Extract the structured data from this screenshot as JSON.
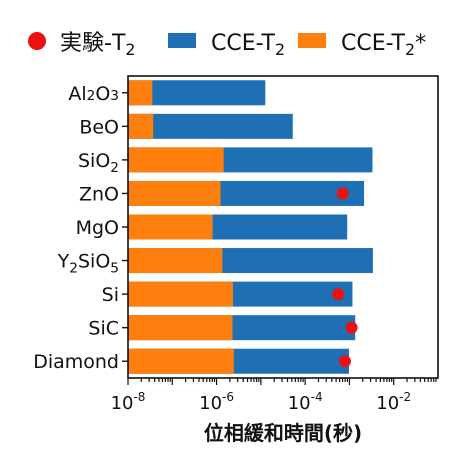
{
  "chart_data": {
    "type": "bar",
    "orientation": "horizontal",
    "x_scale": "log",
    "xlim": [
      1e-08,
      0.1
    ],
    "xlabel": "位相緩和時間(秒)",
    "x_ticks": [
      {
        "value": 1e-08,
        "base": "10",
        "exp": "-8"
      },
      {
        "value": 1e-06,
        "base": "10",
        "exp": "-6"
      },
      {
        "value": 0.0001,
        "base": "10",
        "exp": "-4"
      },
      {
        "value": 0.01,
        "base": "10",
        "exp": "-2"
      }
    ],
    "categories": [
      {
        "parts": [
          [
            "Al",
            ""
          ],
          [
            "2",
            "small"
          ],
          [
            "O",
            ""
          ],
          [
            "3",
            "small"
          ]
        ]
      },
      {
        "parts": [
          [
            "BeO",
            ""
          ]
        ]
      },
      {
        "parts": [
          [
            "SiO",
            ""
          ],
          [
            "2",
            "sub"
          ]
        ]
      },
      {
        "parts": [
          [
            "ZnO",
            ""
          ]
        ]
      },
      {
        "parts": [
          [
            "MgO",
            ""
          ]
        ]
      },
      {
        "parts": [
          [
            "Y",
            ""
          ],
          [
            "2",
            "sub"
          ],
          [
            "SiO",
            ""
          ],
          [
            "5",
            "sub"
          ]
        ]
      },
      {
        "parts": [
          [
            "Si",
            ""
          ]
        ]
      },
      {
        "parts": [
          [
            "SiC",
            ""
          ]
        ]
      },
      {
        "parts": [
          [
            "Diamond",
            ""
          ]
        ]
      }
    ],
    "series": [
      {
        "key": "cce_t2",
        "color": "#1f6fb4",
        "values": [
          1.26e-05,
          5.25e-05,
          0.00331,
          0.00214,
          0.000891,
          0.00339,
          0.00117,
          0.00135,
          0.000977
        ]
      },
      {
        "key": "cce_t2_star",
        "color": "#ff7f0e",
        "values": [
          3.55e-08,
          3.72e-08,
          1.45e-06,
          1.23e-06,
          8.13e-07,
          1.35e-06,
          2.34e-06,
          2.29e-06,
          2.45e-06
        ]
      },
      {
        "key": "exp_t2",
        "color": "#ee1111",
        "type": "scatter",
        "values": [
          null,
          null,
          null,
          0.000708,
          null,
          null,
          0.000562,
          0.00112,
          0.000794
        ]
      }
    ],
    "legend": {
      "position": "top",
      "entries": [
        {
          "series": "exp_t2",
          "marker": "circle",
          "parts": [
            [
              "実験-T",
              ""
            ],
            [
              "2",
              "sub"
            ]
          ]
        },
        {
          "series": "cce_t2",
          "marker": "rect",
          "parts": [
            [
              "CCE-T",
              ""
            ],
            [
              "2",
              "sub"
            ]
          ]
        },
        {
          "series": "cce_t2_star",
          "marker": "rect",
          "parts": [
            [
              "CCE-T",
              ""
            ],
            [
              "2",
              "sub"
            ],
            [
              "*",
              ""
            ]
          ]
        }
      ]
    },
    "grid": false
  }
}
